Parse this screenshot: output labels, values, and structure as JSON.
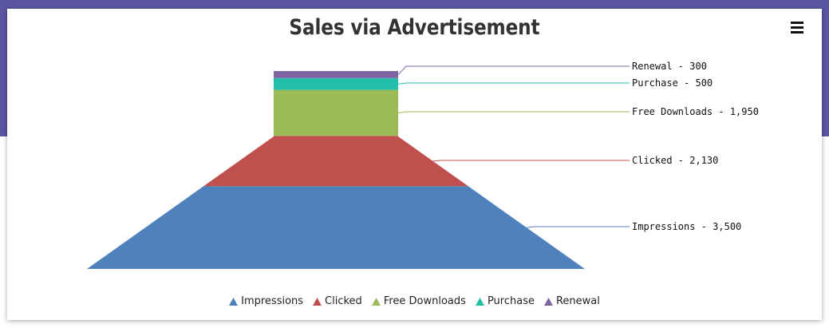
{
  "page": {
    "background": "#5b56a4"
  },
  "chart": {
    "title": "Sales via Advertisement",
    "menu_icon": "hamburger-menu-icon"
  },
  "chart_data": {
    "type": "funnel",
    "title": "Sales via Advertisement",
    "series": [
      {
        "name": "Impressions",
        "value": 3500,
        "label": "Impressions - 3,500",
        "color": "#4f81bc"
      },
      {
        "name": "Clicked",
        "value": 2130,
        "label": "Clicked - 2,130",
        "color": "#c0504e"
      },
      {
        "name": "Free Downloads",
        "value": 1950,
        "label": "Free Downloads - 1,950",
        "color": "#9bbb58"
      },
      {
        "name": "Purchase",
        "value": 500,
        "label": "Purchase - 500",
        "color": "#23bfaa"
      },
      {
        "name": "Renewal",
        "value": 300,
        "label": "Renewal - 300",
        "color": "#8064a1"
      }
    ],
    "legend_position": "bottom-center"
  },
  "legend": {
    "items": [
      {
        "label": "Impressions",
        "color": "#4f81bc"
      },
      {
        "label": "Clicked",
        "color": "#c0504e"
      },
      {
        "label": "Free Downloads",
        "color": "#9bbb58"
      },
      {
        "label": "Purchase",
        "color": "#23bfaa"
      },
      {
        "label": "Renewal",
        "color": "#8064a1"
      }
    ]
  }
}
